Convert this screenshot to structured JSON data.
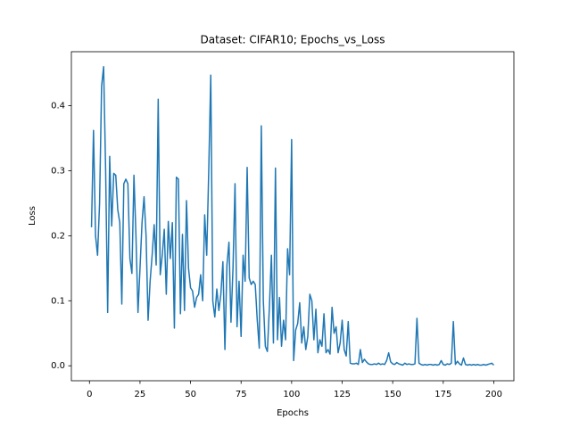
{
  "chart_data": {
    "type": "line",
    "title": "Dataset: CIFAR10; Epochs_vs_Loss",
    "x_label": "Epochs",
    "y_label": "Loss",
    "x": [
      1,
      2,
      3,
      4,
      5,
      6,
      7,
      8,
      9,
      10,
      11,
      12,
      13,
      14,
      15,
      16,
      17,
      18,
      19,
      20,
      21,
      22,
      23,
      24,
      25,
      26,
      27,
      28,
      29,
      30,
      31,
      32,
      33,
      34,
      35,
      36,
      37,
      38,
      39,
      40,
      41,
      42,
      43,
      44,
      45,
      46,
      47,
      48,
      49,
      50,
      51,
      52,
      53,
      54,
      55,
      56,
      57,
      58,
      59,
      60,
      61,
      62,
      63,
      64,
      65,
      66,
      67,
      68,
      69,
      70,
      71,
      72,
      73,
      74,
      75,
      76,
      77,
      78,
      79,
      80,
      81,
      82,
      83,
      84,
      85,
      86,
      87,
      88,
      89,
      90,
      91,
      92,
      93,
      94,
      95,
      96,
      97,
      98,
      99,
      100,
      101,
      102,
      103,
      104,
      105,
      106,
      107,
      108,
      109,
      110,
      111,
      112,
      113,
      114,
      115,
      116,
      117,
      118,
      119,
      120,
      121,
      122,
      123,
      124,
      125,
      126,
      127,
      128,
      129,
      130,
      131,
      132,
      133,
      134,
      135,
      136,
      137,
      138,
      139,
      140,
      141,
      142,
      143,
      144,
      145,
      146,
      147,
      148,
      149,
      150,
      151,
      152,
      153,
      154,
      155,
      156,
      157,
      158,
      159,
      160,
      161,
      162,
      163,
      164,
      165,
      166,
      167,
      168,
      169,
      170,
      171,
      172,
      173,
      174,
      175,
      176,
      177,
      178,
      179,
      180,
      181,
      182,
      183,
      184,
      185,
      186,
      187,
      188,
      189,
      190,
      191,
      192,
      193,
      194,
      195,
      196,
      197,
      198,
      199,
      200
    ],
    "values": [
      0.213,
      0.362,
      0.2,
      0.17,
      0.25,
      0.43,
      0.46,
      0.3,
      0.082,
      0.322,
      0.215,
      0.296,
      0.293,
      0.24,
      0.22,
      0.095,
      0.28,
      0.287,
      0.28,
      0.165,
      0.142,
      0.293,
      0.2,
      0.082,
      0.15,
      0.22,
      0.26,
      0.2,
      0.07,
      0.13,
      0.17,
      0.217,
      0.155,
      0.41,
      0.14,
      0.17,
      0.21,
      0.11,
      0.222,
      0.165,
      0.22,
      0.058,
      0.29,
      0.287,
      0.08,
      0.202,
      0.085,
      0.254,
      0.15,
      0.12,
      0.115,
      0.09,
      0.105,
      0.11,
      0.14,
      0.1,
      0.232,
      0.17,
      0.3,
      0.447,
      0.1,
      0.075,
      0.118,
      0.085,
      0.11,
      0.16,
      0.025,
      0.155,
      0.19,
      0.067,
      0.15,
      0.28,
      0.06,
      0.13,
      0.045,
      0.17,
      0.13,
      0.305,
      0.135,
      0.125,
      0.13,
      0.125,
      0.07,
      0.027,
      0.369,
      0.1,
      0.03,
      0.022,
      0.09,
      0.17,
      0.035,
      0.304,
      0.04,
      0.105,
      0.03,
      0.07,
      0.04,
      0.18,
      0.14,
      0.348,
      0.008,
      0.055,
      0.065,
      0.097,
      0.035,
      0.06,
      0.025,
      0.045,
      0.11,
      0.1,
      0.04,
      0.087,
      0.02,
      0.04,
      0.03,
      0.08,
      0.02,
      0.025,
      0.018,
      0.09,
      0.05,
      0.06,
      0.02,
      0.035,
      0.07,
      0.025,
      0.015,
      0.068,
      0.004,
      0.003,
      0.003,
      0.004,
      0.002,
      0.025,
      0.005,
      0.01,
      0.006,
      0.003,
      0.002,
      0.002,
      0.003,
      0.002,
      0.004,
      0.002,
      0.003,
      0.002,
      0.008,
      0.02,
      0.006,
      0.003,
      0.002,
      0.005,
      0.003,
      0.002,
      0.001,
      0.004,
      0.002,
      0.003,
      0.002,
      0.002,
      0.003,
      0.073,
      0.004,
      0.002,
      0.001,
      0.002,
      0.001,
      0.002,
      0.002,
      0.001,
      0.002,
      0.001,
      0.002,
      0.008,
      0.002,
      0.001,
      0.003,
      0.002,
      0.004,
      0.068,
      0.002,
      0.007,
      0.003,
      0.001,
      0.012,
      0.002,
      0.001,
      0.002,
      0.001,
      0.002,
      0.001,
      0.002,
      0.001,
      0.001,
      0.002,
      0.001,
      0.002,
      0.003,
      0.004,
      0.001
    ],
    "color": "#1f77b4",
    "xlim": [
      -8.95,
      209.95
    ],
    "ylim": [
      -0.023,
      0.483
    ],
    "xticks": [
      0,
      25,
      50,
      75,
      100,
      125,
      150,
      175,
      200
    ],
    "yticks": [
      {
        "value": 0,
        "label": "0.0"
      },
      0.1,
      0.2,
      0.3,
      0.4
    ],
    "grid": false
  }
}
